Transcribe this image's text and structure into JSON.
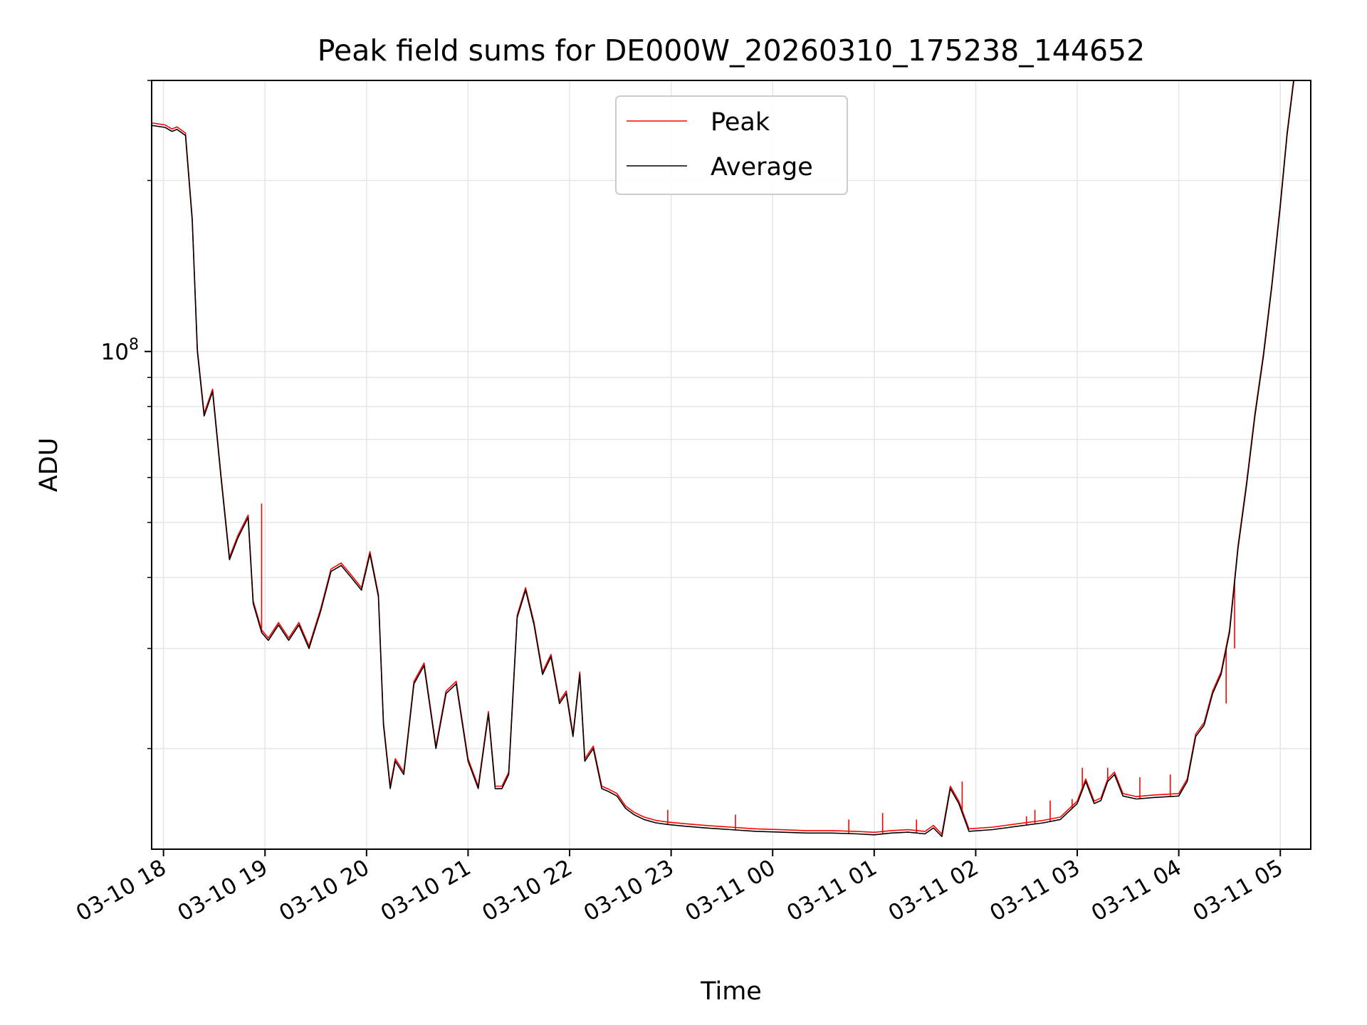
{
  "chart_data": {
    "type": "line",
    "title": "Peak field sums for DE000W_20260310_175238_144652",
    "xlabel": "Time",
    "ylabel": "ADU",
    "yscale": "log",
    "ylim": [
      13300000,
      300000000
    ],
    "xlim": [
      "2026-03-10 17:53",
      "2026-03-11 05:18"
    ],
    "grid": true,
    "legend_position": "top-center",
    "x_tick_labels": [
      "03-10 18",
      "03-10 19",
      "03-10 20",
      "03-10 21",
      "03-10 22",
      "03-10 23",
      "03-11 00",
      "03-11 01",
      "03-11 02",
      "03-11 03",
      "03-11 04",
      "03-11 05"
    ],
    "y_tick_labels": [
      {
        "base": "10",
        "exp": "8",
        "value": 100000000
      }
    ],
    "series": [
      {
        "name": "Peak",
        "color": "#ff0000"
      },
      {
        "name": "Average",
        "color": "#000000"
      }
    ],
    "x": [
      "2026-03-10 17:53",
      "2026-03-10 18:01",
      "2026-03-10 18:05",
      "2026-03-10 18:08",
      "2026-03-10 18:13",
      "2026-03-10 18:17",
      "2026-03-10 18:20",
      "2026-03-10 18:24",
      "2026-03-10 18:29",
      "2026-03-10 18:34",
      "2026-03-10 18:39",
      "2026-03-10 18:44",
      "2026-03-10 18:50",
      "2026-03-10 18:53",
      "2026-03-10 18:58",
      "2026-03-10 19:02",
      "2026-03-10 19:08",
      "2026-03-10 19:14",
      "2026-03-10 19:20",
      "2026-03-10 19:26",
      "2026-03-10 19:33",
      "2026-03-10 19:39",
      "2026-03-10 19:45",
      "2026-03-10 19:51",
      "2026-03-10 19:57",
      "2026-03-10 20:02",
      "2026-03-10 20:07",
      "2026-03-10 20:10",
      "2026-03-10 20:14",
      "2026-03-10 20:17",
      "2026-03-10 20:22",
      "2026-03-10 20:28",
      "2026-03-10 20:34",
      "2026-03-10 20:41",
      "2026-03-10 20:47",
      "2026-03-10 20:53",
      "2026-03-10 21:00",
      "2026-03-10 21:06",
      "2026-03-10 21:12",
      "2026-03-10 21:16",
      "2026-03-10 21:20",
      "2026-03-10 21:24",
      "2026-03-10 21:29",
      "2026-03-10 21:34",
      "2026-03-10 21:39",
      "2026-03-10 21:44",
      "2026-03-10 21:49",
      "2026-03-10 21:54",
      "2026-03-10 21:58",
      "2026-03-10 22:02",
      "2026-03-10 22:06",
      "2026-03-10 22:09",
      "2026-03-10 22:14",
      "2026-03-10 22:19",
      "2026-03-10 22:23",
      "2026-03-10 22:28",
      "2026-03-10 22:33",
      "2026-03-10 22:38",
      "2026-03-10 22:44",
      "2026-03-10 22:51",
      "2026-03-10 22:58",
      "2026-03-10 23:08",
      "2026-03-10 23:20",
      "2026-03-10 23:35",
      "2026-03-10 23:50",
      "2026-03-11 00:05",
      "2026-03-11 00:20",
      "2026-03-11 00:35",
      "2026-03-11 00:50",
      "2026-03-11 01:00",
      "2026-03-11 01:10",
      "2026-03-11 01:20",
      "2026-03-11 01:30",
      "2026-03-11 01:35",
      "2026-03-11 01:40",
      "2026-03-11 01:45",
      "2026-03-11 01:50",
      "2026-03-11 01:56",
      "2026-03-11 02:10",
      "2026-03-11 02:25",
      "2026-03-11 02:40",
      "2026-03-11 02:50",
      "2026-03-11 03:00",
      "2026-03-11 03:05",
      "2026-03-11 03:10",
      "2026-03-11 03:14",
      "2026-03-11 03:18",
      "2026-03-11 03:22",
      "2026-03-11 03:27",
      "2026-03-11 03:35",
      "2026-03-11 03:45",
      "2026-03-11 04:00",
      "2026-03-11 04:05",
      "2026-03-11 04:10",
      "2026-03-11 04:15",
      "2026-03-11 04:20",
      "2026-03-11 04:25",
      "2026-03-11 04:30",
      "2026-03-11 04:35",
      "2026-03-11 04:40",
      "2026-03-11 04:45",
      "2026-03-11 04:50",
      "2026-03-11 04:55",
      "2026-03-11 05:00",
      "2026-03-11 05:04",
      "2026-03-11 05:08",
      "2026-03-11 05:12",
      "2026-03-11 05:18"
    ],
    "average": [
      250000000,
      248000000,
      244000000,
      246000000,
      240000000,
      170000000,
      100000000,
      77000000,
      85000000,
      60000000,
      43000000,
      47000000,
      51000000,
      36000000,
      32000000,
      31000000,
      33000000,
      31000000,
      33000000,
      30000000,
      35000000,
      41000000,
      42000000,
      40000000,
      38000000,
      44000000,
      37000000,
      22000000,
      17000000,
      19000000,
      18000000,
      26000000,
      28000000,
      20000000,
      25000000,
      26000000,
      19000000,
      17000000,
      23000000,
      17000000,
      17000000,
      18000000,
      34000000,
      38000000,
      33000000,
      27000000,
      29000000,
      24000000,
      25000000,
      21000000,
      27000000,
      19000000,
      20000000,
      17000000,
      16800000,
      16500000,
      15700000,
      15300000,
      15000000,
      14800000,
      14700000,
      14600000,
      14500000,
      14400000,
      14300000,
      14250000,
      14200000,
      14200000,
      14150000,
      14100000,
      14200000,
      14250000,
      14150000,
      14500000,
      14000000,
      17000000,
      16000000,
      14300000,
      14400000,
      14600000,
      14800000,
      15000000,
      16000000,
      17500000,
      16000000,
      16200000,
      17500000,
      18000000,
      16500000,
      16300000,
      16400000,
      16500000,
      17500000,
      21000000,
      22000000,
      25000000,
      27000000,
      32000000,
      45000000,
      58000000,
      77000000,
      98000000,
      130000000,
      180000000,
      240000000,
      300000000
    ],
    "peak_spikes": [
      {
        "x": "2026-03-10 18:58",
        "value": 54000000
      },
      {
        "x": "2026-03-10 22:58",
        "value": 15600000
      },
      {
        "x": "2026-03-10 23:38",
        "value": 15300000
      },
      {
        "x": "2026-03-11 00:45",
        "value": 15000000
      },
      {
        "x": "2026-03-11 01:05",
        "value": 15400000
      },
      {
        "x": "2026-03-11 01:25",
        "value": 15000000
      },
      {
        "x": "2026-03-11 01:52",
        "value": 17500000
      },
      {
        "x": "2026-03-11 02:30",
        "value": 15200000
      },
      {
        "x": "2026-03-11 02:35",
        "value": 15600000
      },
      {
        "x": "2026-03-11 02:44",
        "value": 16200000
      },
      {
        "x": "2026-03-11 02:57",
        "value": 16300000
      },
      {
        "x": "2026-03-11 03:03",
        "value": 18500000
      },
      {
        "x": "2026-03-11 03:18",
        "value": 18500000
      },
      {
        "x": "2026-03-11 03:37",
        "value": 17800000
      },
      {
        "x": "2026-03-11 03:55",
        "value": 18000000
      },
      {
        "x": "2026-03-11 04:15",
        "value": 22000000
      },
      {
        "x": "2026-03-11 04:28",
        "value": 24000000
      },
      {
        "x": "2026-03-11 04:33",
        "value": 30000000
      }
    ]
  }
}
